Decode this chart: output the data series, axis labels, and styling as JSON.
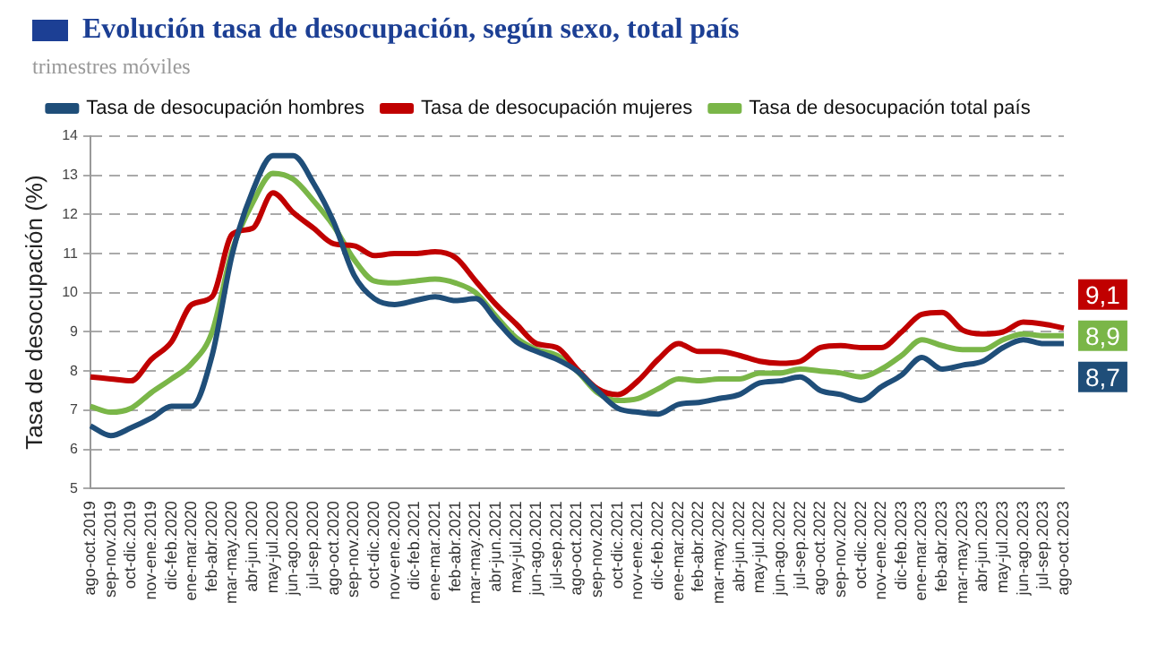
{
  "chart_data": {
    "type": "line",
    "title": "Evolución tasa de desocupación, según sexo, total país",
    "subtitle": "trimestres móviles",
    "ylabel": "Tasa de desocupación (%)",
    "categories": [
      "ago-oct.2019",
      "sep-nov.2019",
      "oct-dic.2019",
      "nov-ene.2019",
      "dic-feb.2020",
      "ene-mar.2020",
      "feb-abr.2020",
      "mar-may.2020",
      "abr-jun.2020",
      "may-jul.2020",
      "jun-ago.2020",
      "jul-sep.2020",
      "ago-oct.2020",
      "sep-nov.2020",
      "oct-dic.2020",
      "nov-ene.2020",
      "dic-feb.2021",
      "ene-mar.2021",
      "feb-abr.2021",
      "mar-may.2021",
      "abr-jun.2021",
      "may-jul.2021",
      "jun-ago.2021",
      "jul-sep.2021",
      "ago-oct.2021",
      "sep-nov.2021",
      "oct-dic.2021",
      "nov-ene.2021",
      "dic-feb.2022",
      "ene-mar.2022",
      "feb-abr.2022",
      "mar-may.2022",
      "abr-jun.2022",
      "may-jul.2022",
      "jun-ago.2022",
      "jul-sep.2022",
      "ago-oct.2022",
      "sep-nov.2022",
      "oct-dic.2022",
      "nov-ene.2022",
      "dic-feb.2023",
      "ene-mar.2023",
      "feb-abr.2023",
      "mar-may.2023",
      "abr-jun.2023",
      "may-jul.2023",
      "jun-ago.2023",
      "jul-sep.2023",
      "ago-oct.2023"
    ],
    "series": [
      {
        "name": "Tasa de desocupación hombres",
        "color": "#1f4e79",
        "values": [
          6.6,
          6.35,
          6.55,
          6.8,
          7.1,
          7.1,
          8.4,
          11.0,
          12.6,
          13.5,
          13.5,
          12.8,
          11.8,
          10.45,
          9.85,
          9.7,
          9.8,
          9.9,
          9.8,
          9.85,
          9.3,
          8.75,
          8.5,
          8.3,
          8.0,
          7.5,
          7.05,
          6.95,
          6.9,
          7.15,
          7.2,
          7.3,
          7.4,
          7.7,
          7.75,
          7.85,
          7.5,
          7.4,
          7.25,
          7.6,
          7.9,
          8.35,
          8.05,
          8.15,
          8.25,
          8.6,
          8.8,
          8.7,
          8.7
        ],
        "value_labels": [
          null,
          null,
          null,
          null,
          null,
          null,
          null,
          null,
          null,
          null,
          null,
          null,
          null,
          null,
          null,
          null,
          null,
          null,
          null,
          null,
          null,
          null,
          null,
          null,
          null,
          null,
          null,
          null,
          null,
          null,
          null,
          null,
          null,
          null,
          null,
          null,
          null,
          null,
          null,
          null,
          null,
          null,
          null,
          null,
          null,
          null,
          null,
          null,
          "8,7"
        ]
      },
      {
        "name": "Tasa de desocupación mujeres",
        "color": "#c00000",
        "values": [
          7.85,
          7.8,
          7.75,
          8.3,
          8.75,
          9.7,
          9.9,
          11.5,
          11.65,
          12.55,
          12.05,
          11.65,
          11.25,
          11.2,
          10.95,
          11.0,
          11.0,
          11.05,
          10.9,
          10.3,
          9.7,
          9.2,
          8.7,
          8.6,
          8.05,
          7.55,
          7.4,
          7.75,
          8.3,
          8.7,
          8.5,
          8.5,
          8.4,
          8.25,
          8.2,
          8.25,
          8.6,
          8.65,
          8.6,
          8.6,
          9.0,
          9.45,
          9.5,
          9.05,
          8.95,
          9.0,
          9.25,
          9.2,
          9.1
        ],
        "value_labels": [
          null,
          null,
          null,
          null,
          null,
          null,
          null,
          null,
          null,
          null,
          null,
          null,
          null,
          null,
          null,
          null,
          null,
          null,
          null,
          null,
          null,
          null,
          null,
          null,
          null,
          null,
          null,
          null,
          null,
          null,
          null,
          null,
          null,
          null,
          null,
          null,
          null,
          null,
          null,
          null,
          null,
          null,
          null,
          null,
          null,
          null,
          null,
          null,
          "9,1"
        ]
      },
      {
        "name": "Tasa de desocupación total país",
        "color": "#7ab648",
        "values": [
          7.1,
          6.95,
          7.05,
          7.45,
          7.8,
          8.2,
          9.0,
          11.1,
          12.3,
          13.05,
          12.9,
          12.35,
          11.7,
          10.85,
          10.3,
          10.25,
          10.3,
          10.35,
          10.25,
          10.0,
          9.4,
          8.85,
          8.55,
          8.4,
          8.0,
          7.45,
          7.25,
          7.3,
          7.55,
          7.8,
          7.75,
          7.8,
          7.8,
          7.95,
          7.95,
          8.05,
          8.0,
          7.95,
          7.85,
          8.05,
          8.4,
          8.8,
          8.65,
          8.55,
          8.55,
          8.8,
          8.95,
          8.9,
          8.9
        ],
        "value_labels": [
          null,
          null,
          null,
          null,
          null,
          null,
          null,
          null,
          null,
          null,
          null,
          null,
          null,
          null,
          null,
          null,
          null,
          null,
          null,
          null,
          null,
          null,
          null,
          null,
          null,
          null,
          null,
          null,
          null,
          null,
          null,
          null,
          null,
          null,
          null,
          null,
          null,
          null,
          null,
          null,
          null,
          null,
          null,
          null,
          null,
          null,
          null,
          null,
          "8,9"
        ]
      }
    ],
    "ylim": [
      5,
      14
    ],
    "yticks": [
      5,
      6,
      7,
      8,
      9,
      10,
      11,
      12,
      13,
      14
    ],
    "grid": "y",
    "legend": "top",
    "marker": "none",
    "line_style": "solid"
  }
}
